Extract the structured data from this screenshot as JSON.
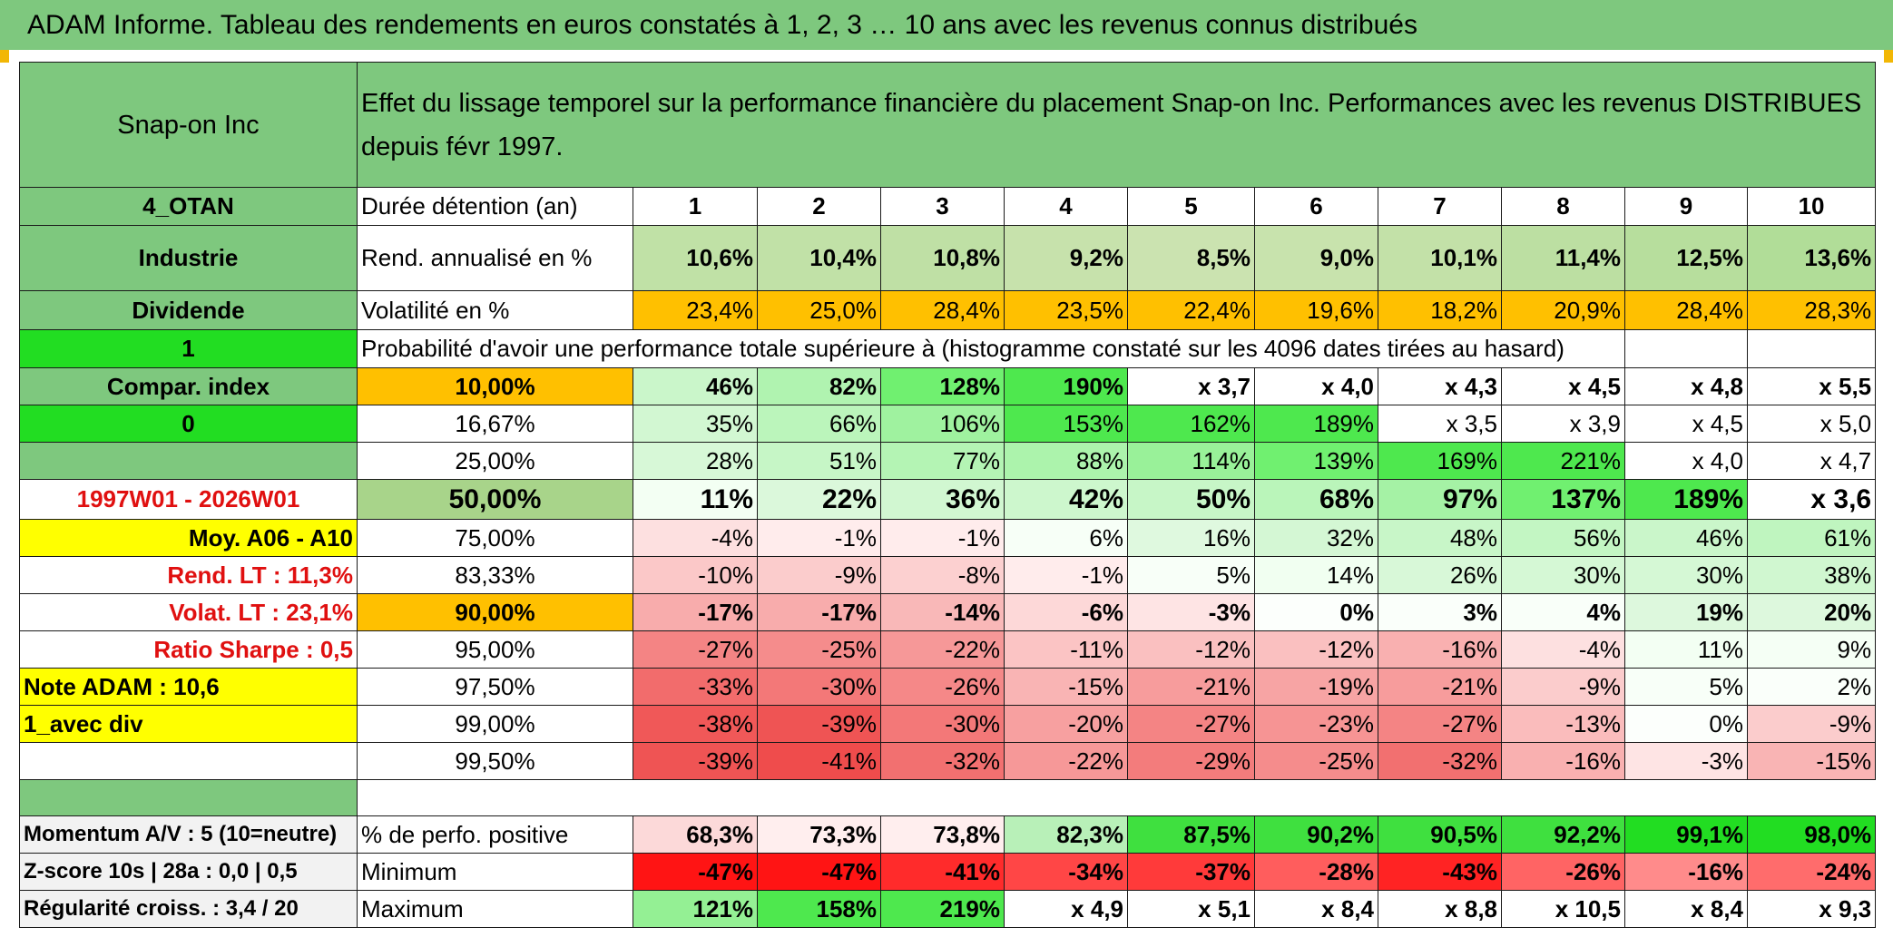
{
  "title": "ADAM Informe. Tableau des rendements en euros constatés à 1, 2, 3 … 10 ans avec les revenus connus distribués",
  "colors": {
    "header_green": "#7ec87e",
    "bright_green": "#22dd22",
    "orange": "#ffc000",
    "yellow": "#ffff00",
    "red_text": "#e01010"
  },
  "header": {
    "name": "Snap-on Inc",
    "description": "Effet du lissage temporel sur la performance financière du placement Snap-on Inc. Performances avec les revenus DISTRIBUES depuis févr 1997."
  },
  "left_labels": {
    "code": "4_OTAN",
    "sector": "Industrie",
    "dividend_label": "Dividende",
    "flag_1": "1",
    "compar_index": "Compar. index",
    "flag_0": "0",
    "period": "1997W01 - 2026W01",
    "moy": "Moy. A06 - A10",
    "rend_lt": "Rend. LT :   11,3%",
    "volat_lt": "Volat. LT :   23,1%",
    "sharpe": "Ratio Sharpe :    0,5",
    "note": "Note ADAM : 10,6",
    "avec_div": "1_avec div",
    "momentum": "Momentum A/V : 5 (10=neutre)",
    "zscore": "Z-score 10s | 28a : 0,0 | 0,5",
    "regularite": "Régularité croiss. : 3,4 / 20"
  },
  "duration": {
    "label": "Durée détention (an)",
    "years": [
      "1",
      "2",
      "3",
      "4",
      "5",
      "6",
      "7",
      "8",
      "9",
      "10"
    ]
  },
  "rend": {
    "label": "Rend. annualisé en %",
    "values": [
      "10,6%",
      "10,4%",
      "10,8%",
      "9,2%",
      "8,5%",
      "9,0%",
      "10,1%",
      "11,4%",
      "12,5%",
      "13,6%"
    ]
  },
  "volat": {
    "label": "Volatilité en %",
    "values": [
      "23,4%",
      "25,0%",
      "28,4%",
      "23,5%",
      "22,4%",
      "19,6%",
      "18,2%",
      "20,9%",
      "28,4%",
      "28,3%"
    ]
  },
  "proba_label": "Probabilité d'avoir une performance totale supérieure à (histogramme constaté sur les 4096 dates tirées au hasard)",
  "quantiles": [
    {
      "pct": "10,00%",
      "values": [
        "46%",
        "82%",
        "128%",
        "190%",
        "x 3,7",
        "x 4,0",
        "x 4,3",
        "x 4,5",
        "x 4,8",
        "x 5,5"
      ]
    },
    {
      "pct": "16,67%",
      "values": [
        "35%",
        "66%",
        "106%",
        "153%",
        "162%",
        "189%",
        "x 3,5",
        "x 3,9",
        "x 4,5",
        "x 5,0"
      ]
    },
    {
      "pct": "25,00%",
      "values": [
        "28%",
        "51%",
        "77%",
        "88%",
        "114%",
        "139%",
        "169%",
        "221%",
        "x 4,0",
        "x 4,7"
      ]
    },
    {
      "pct": "50,00%",
      "values": [
        "11%",
        "22%",
        "36%",
        "42%",
        "50%",
        "68%",
        "97%",
        "137%",
        "189%",
        "x 3,6"
      ]
    },
    {
      "pct": "75,00%",
      "values": [
        "-4%",
        "-1%",
        "-1%",
        "6%",
        "16%",
        "32%",
        "48%",
        "56%",
        "46%",
        "61%"
      ]
    },
    {
      "pct": "83,33%",
      "values": [
        "-10%",
        "-9%",
        "-8%",
        "-1%",
        "5%",
        "14%",
        "26%",
        "30%",
        "30%",
        "38%"
      ]
    },
    {
      "pct": "90,00%",
      "values": [
        "-17%",
        "-17%",
        "-14%",
        "-6%",
        "-3%",
        "0%",
        "3%",
        "4%",
        "19%",
        "20%"
      ]
    },
    {
      "pct": "95,00%",
      "values": [
        "-27%",
        "-25%",
        "-22%",
        "-11%",
        "-12%",
        "-12%",
        "-16%",
        "-4%",
        "11%",
        "9%"
      ]
    },
    {
      "pct": "97,50%",
      "values": [
        "-33%",
        "-30%",
        "-26%",
        "-15%",
        "-21%",
        "-19%",
        "-21%",
        "-9%",
        "5%",
        "2%"
      ]
    },
    {
      "pct": "99,00%",
      "values": [
        "-38%",
        "-39%",
        "-30%",
        "-20%",
        "-27%",
        "-23%",
        "-27%",
        "-13%",
        "0%",
        "-9%"
      ]
    },
    {
      "pct": "99,50%",
      "values": [
        "-39%",
        "-41%",
        "-32%",
        "-22%",
        "-29%",
        "-25%",
        "-32%",
        "-16%",
        "-3%",
        "-15%"
      ]
    }
  ],
  "stats": {
    "positive": {
      "label": "% de perfo. positive",
      "values": [
        "68,3%",
        "73,3%",
        "73,8%",
        "82,3%",
        "87,5%",
        "90,2%",
        "90,5%",
        "92,2%",
        "99,1%",
        "98,0%"
      ]
    },
    "minimum": {
      "label": "Minimum",
      "values": [
        "-47%",
        "-47%",
        "-41%",
        "-34%",
        "-37%",
        "-28%",
        "-43%",
        "-26%",
        "-16%",
        "-24%"
      ]
    },
    "maximum": {
      "label": "Maximum",
      "values": [
        "121%",
        "158%",
        "219%",
        "x 4,9",
        "x 5,1",
        "x 8,4",
        "x 8,8",
        "x 10,5",
        "x 8,4",
        "x 9,3"
      ]
    }
  }
}
